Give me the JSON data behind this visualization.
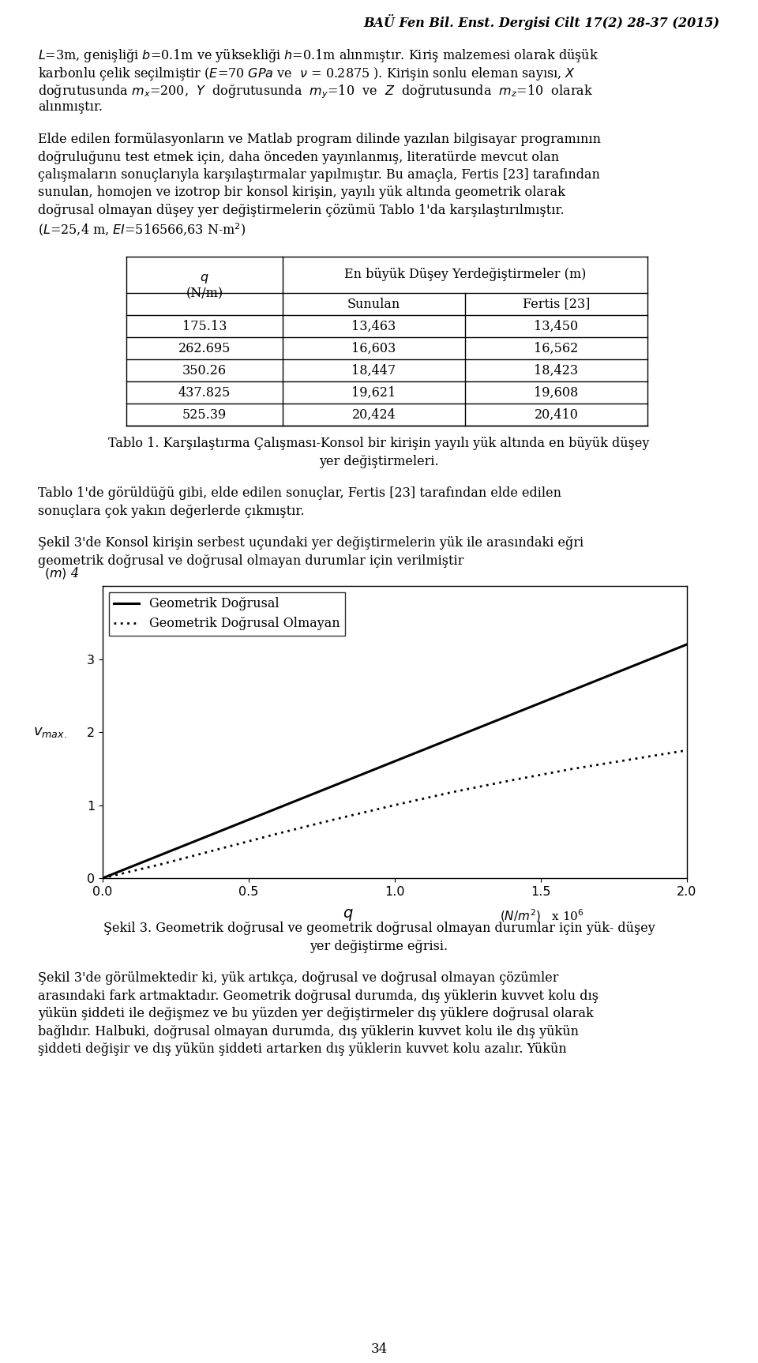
{
  "title_header": "BAÜ Fen Bil. Enst. Dergisi Cilt 17(2) 28-37 (2015)",
  "para1_lines": [
    "L=3m, genişliği b=0.1m ve yüksekliği h=0.1m alınmıştır. Kiriş malzemesi olarak düşük",
    "karbonlu çelik seçilmiştir (E=70 GPa ve  v = 0.2875 ). Kirişin sonlu eleman sayısı, X",
    "doğrutusunda mx=200,  Y  doğrutusunda  my=10  ve  Z  doğrutusunda  mz=10  olarak",
    "alınmıştır."
  ],
  "para2_lines": [
    "Elde edilen formülasyonların ve Matlab program dilinde yazılan bilgisayar programının",
    "doğruluğunu test etmek için, daha önceden yayınlanmış, literatürde mevcut olan",
    "çalışmaların sonuçlarıyla karşılaştırmalar yapılmıştır. Bu amaçla, Fertis [23] tarafından",
    "sunulan, homojen ve izotrop bir konsol kirişin, yayılı yük altında geometrik olarak",
    "doğrusal olmayan düşey yer değiştirmelerin çözümü Tablo 1'da karşılaştırılmıştır.",
    "(L=25,4 m, EI=516566,63 N-m²)"
  ],
  "para3_lines": [
    "Tablo 1'de görüldüğü gibi, elde edilen sonuçlar, Fertis [23] tarafından elde edilen",
    "sonuçlara çok yakın değerlerde çıkmıştır."
  ],
  "para4_lines": [
    "Şekil 3'de Konsol kirişin serbest uçundaki yer değiştirmelerin yük ile arasındaki eğri",
    "geometrik doğrusal ve doğrusal olmayan durumlar için verilmiştir"
  ],
  "para5_lines": [
    "Şekil 3'de görülmektedir ki, yük artıkça, doğrusal ve doğrusal olmayan çözümler",
    "arasındaki fark artmaktadır. Geometrik doğrusal durumda, dış yüklerin kuvvet kolu dış",
    "yükün şiddeti ile değişmez ve bu yüzden yer değiştirmeler dış yüklere doğrusal olarak",
    "bağlıdır. Halbuki, doğrusal olmayan durumda, dış yüklerin kuvvet kolu ile dış yükün",
    "şiddeti değişir ve dış yükün şiddeti artarken dış yüklerin kuvvet kolu azalır. Yükün"
  ],
  "table_caption_lines": [
    "Tablo 1. Karşılaştırma Çalışması-Konsol bir kirişin yayılı yük altında en büyük düşey",
    "yer değiştirmeleri."
  ],
  "fig_caption_lines": [
    "Şekil 3. Geometrik doğrusal ve geometrik doğrusal olmayan durumlar için yük- düşey",
    "yer değiştirme eğrisi."
  ],
  "table_rows": [
    [
      "175.13",
      "13,463",
      "13,450"
    ],
    [
      "262.695",
      "16,603",
      "16,562"
    ],
    [
      "350.26",
      "18,447",
      "18,423"
    ],
    [
      "437.825",
      "19,621",
      "19,608"
    ],
    [
      "525.39",
      "20,424",
      "20,410"
    ]
  ],
  "page_number": "34",
  "linear_x": [
    0.0,
    0.2,
    0.4,
    0.6,
    0.8,
    1.0,
    1.2,
    1.4,
    1.6,
    1.8,
    2.0
  ],
  "linear_y": [
    0.0,
    0.32,
    0.64,
    0.96,
    1.28,
    1.6,
    1.92,
    2.24,
    2.56,
    2.88,
    3.2
  ],
  "nonlinear_x": [
    0.0,
    0.2,
    0.4,
    0.6,
    0.8,
    1.0,
    1.2,
    1.4,
    1.6,
    1.8,
    2.0
  ],
  "nonlinear_y": [
    0.0,
    0.19,
    0.4,
    0.61,
    0.81,
    1.0,
    1.18,
    1.34,
    1.49,
    1.62,
    1.75
  ],
  "legend_linear": "Geometrik Doğrusal",
  "legend_nonlinear": "Geometrik Doğrusal Olmayan",
  "bg": "#ffffff",
  "fg": "#000000"
}
